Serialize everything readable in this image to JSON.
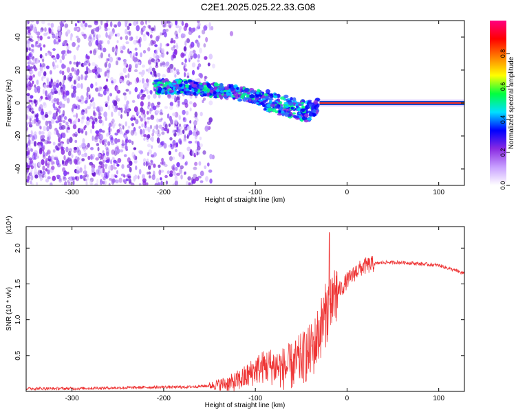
{
  "title": "C2E1.2025.025.22.33.G08",
  "chart_data": [
    {
      "type": "heatmap",
      "xlabel": "Height of straight line (km)",
      "ylabel": "Frequency (Hz)",
      "xlim": [
        -350,
        128
      ],
      "ylim": [
        -50,
        50
      ],
      "x_ticks": [
        -300,
        -200,
        -100,
        0,
        100
      ],
      "y_ticks": [
        -40,
        -20,
        0,
        20,
        40
      ],
      "colorbar": {
        "label": "Normalized spectral amplitude",
        "range": [
          0,
          1
        ],
        "ticks": [
          "0.0",
          "0.2",
          "0.4",
          "0.6",
          "0.8"
        ],
        "colors": [
          "#ffffff",
          "#c8a0ff",
          "#8a2be2",
          "#0000ff",
          "#00e0ff",
          "#00ff40",
          "#ffff00",
          "#ff8000",
          "#ff0000",
          "#ff0080"
        ]
      },
      "ridge": {
        "x": [
          -210,
          -180,
          -150,
          -120,
          -100,
          -80,
          -60,
          -45,
          -35,
          -30,
          -20,
          -10,
          0,
          50,
          128
        ],
        "y": [
          10,
          10,
          8,
          6,
          4,
          0,
          -3,
          -5,
          -4,
          0,
          0,
          1,
          1,
          0,
          0
        ]
      }
    },
    {
      "type": "line",
      "xlabel": "Height of straight line (km)",
      "ylabel": "SNR (10 * v/v)",
      "y_multiplier": "(x10⁴)",
      "xlim": [
        -350,
        128
      ],
      "ylim": [
        0,
        2.3
      ],
      "x_ticks": [
        -300,
        -200,
        -100,
        0,
        100
      ],
      "y_ticks": [
        "0.5",
        "1.0",
        "1.5",
        "2.0"
      ],
      "color": "#ee3333",
      "series": [
        {
          "x": [
            -350,
            -300,
            -250,
            -200,
            -175,
            -150,
            -125,
            -110,
            -100,
            -90,
            -80,
            -70,
            -60,
            -50,
            -40,
            -35,
            -30,
            -25,
            -20,
            -15,
            -10,
            -5,
            0,
            5,
            10,
            20,
            30,
            40,
            60,
            80,
            100,
            110,
            120,
            128
          ],
          "y": [
            0.04,
            0.04,
            0.05,
            0.06,
            0.06,
            0.08,
            0.12,
            0.2,
            0.3,
            0.35,
            0.35,
            0.32,
            0.35,
            0.45,
            0.55,
            0.65,
            0.85,
            1.0,
            1.2,
            1.3,
            1.4,
            1.45,
            1.55,
            1.6,
            1.68,
            1.75,
            1.78,
            1.8,
            1.8,
            1.78,
            1.76,
            1.72,
            1.68,
            1.64
          ]
        }
      ]
    }
  ]
}
